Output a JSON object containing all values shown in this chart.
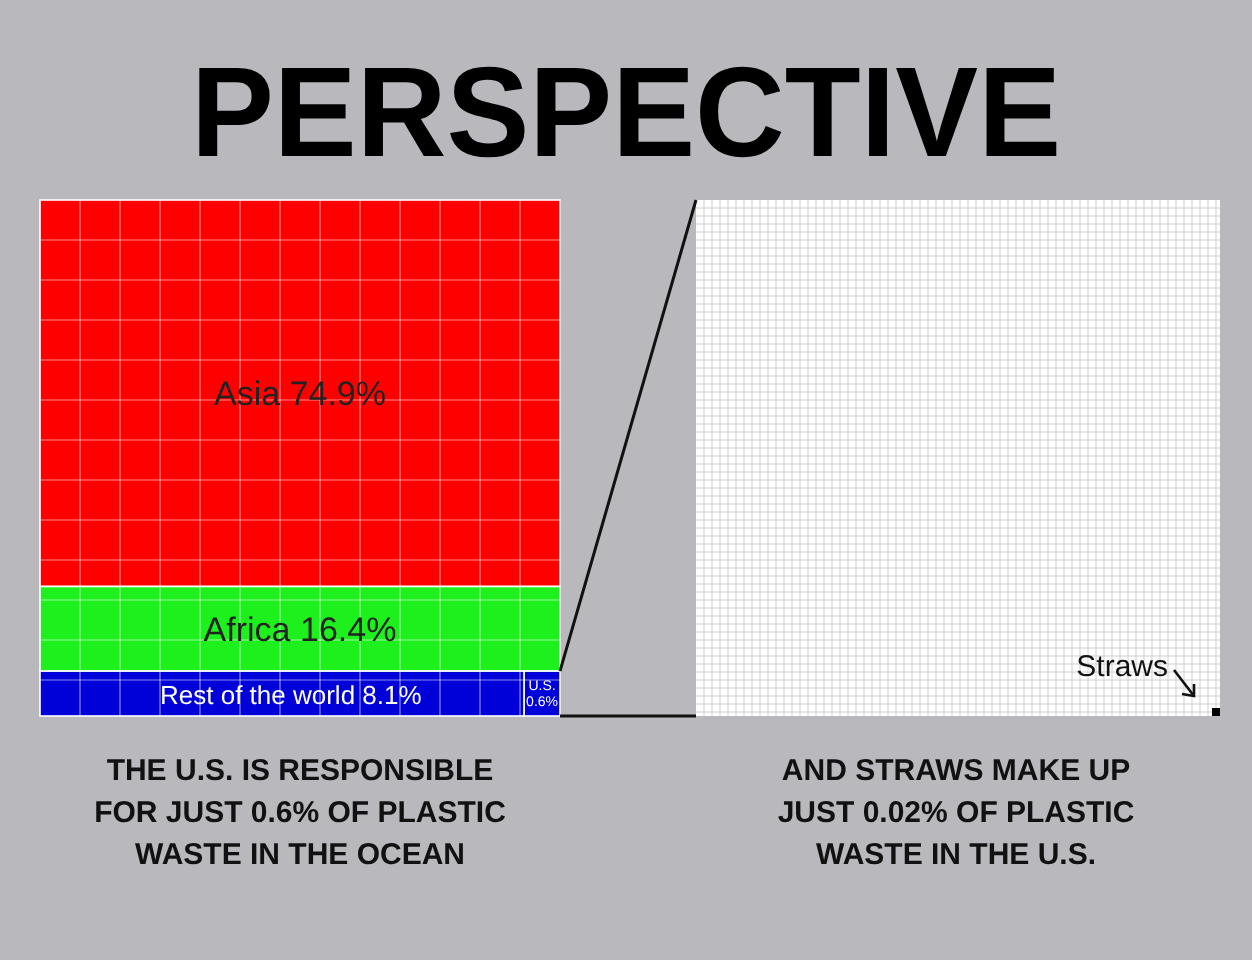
{
  "chart_data": [
    {
      "type": "other",
      "title": "PERSPECTIVE",
      "categories": [
        "Asia",
        "Africa",
        "Rest of the world",
        "U.S."
      ],
      "values": [
        74.9,
        16.4,
        8.1,
        0.6
      ],
      "value_labels": [
        "74.9%",
        "16.4%",
        "8.1%",
        "0.6%"
      ],
      "colors": [
        "#fe0000",
        "#1ef01e",
        "#0000d8",
        "#0000d8"
      ],
      "annotations": [
        "THE U.S. IS RESPONSIBLE\nFOR JUST 0.6% OF PLASTIC\nWASTE IN THE OCEAN"
      ]
    },
    {
      "type": "other",
      "categories": [
        "Straws"
      ],
      "annotations": [
        "AND STRAWS MAKE UP\nJUST 0.02% OF PLASTIC\nWASTE IN THE U.S."
      ]
    }
  ]
}
